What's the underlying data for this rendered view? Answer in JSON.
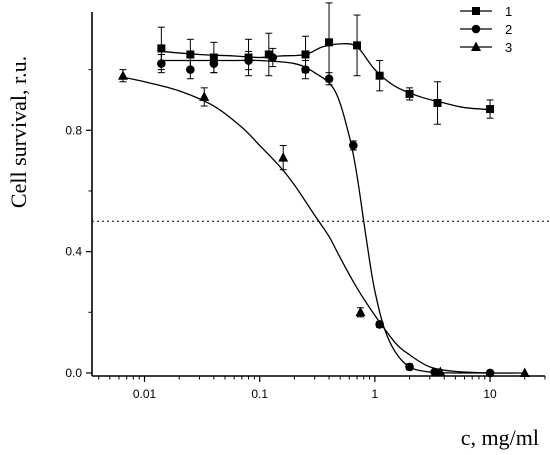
{
  "chart_data": {
    "type": "scatter",
    "title": "",
    "xlabel": "c, mg/ml",
    "ylabel": "Cell survival, r.u.",
    "xscale": "log",
    "xlim": [
      0.0035,
      30
    ],
    "ylim": [
      -0.01,
      1.19
    ],
    "x_ticks": [
      {
        "value": 0.01,
        "label": "0.01"
      },
      {
        "value": 0.1,
        "label": "0.1"
      },
      {
        "value": 1,
        "label": "1"
      },
      {
        "value": 10,
        "label": "10"
      }
    ],
    "y_ticks": [
      {
        "value": 0.0,
        "label": "0.0"
      },
      {
        "value": 0.4,
        "label": "0.4"
      },
      {
        "value": 0.8,
        "label": "0.8"
      }
    ],
    "reference_line": {
      "y": 0.5,
      "style": "dotted"
    },
    "legend_position": "top-right",
    "series": [
      {
        "name": "1",
        "marker": "square",
        "points": [
          {
            "x": 0.014,
            "y": 1.07,
            "err": 0.07
          },
          {
            "x": 0.025,
            "y": 1.05,
            "err": 0.05
          },
          {
            "x": 0.04,
            "y": 1.04,
            "err": 0.05
          },
          {
            "x": 0.08,
            "y": 1.04,
            "err": 0.06
          },
          {
            "x": 0.12,
            "y": 1.05,
            "err": 0.07
          },
          {
            "x": 0.25,
            "y": 1.05,
            "err": 0.06
          },
          {
            "x": 0.4,
            "y": 1.09,
            "err": 0.13
          },
          {
            "x": 0.7,
            "y": 1.08,
            "err": 0.1
          },
          {
            "x": 1.1,
            "y": 0.98,
            "err": 0.05
          },
          {
            "x": 2,
            "y": 0.92,
            "err": 0.02
          },
          {
            "x": 3.5,
            "y": 0.89,
            "err": 0.07
          },
          {
            "x": 10,
            "y": 0.87,
            "err": 0.03
          }
        ],
        "curve": [
          [
            0.014,
            1.06
          ],
          [
            0.03,
            1.05
          ],
          [
            0.06,
            1.045
          ],
          [
            0.1,
            1.04
          ],
          [
            0.15,
            1.045
          ],
          [
            0.25,
            1.05
          ],
          [
            0.35,
            1.075
          ],
          [
            0.5,
            1.085
          ],
          [
            0.7,
            1.075
          ],
          [
            1,
            1.0
          ],
          [
            1.5,
            0.945
          ],
          [
            2.5,
            0.91
          ],
          [
            4,
            0.89
          ],
          [
            6,
            0.875
          ],
          [
            10,
            0.868
          ]
        ]
      },
      {
        "name": "2",
        "marker": "circle",
        "points": [
          {
            "x": 0.014,
            "y": 1.02,
            "err": 0.03
          },
          {
            "x": 0.025,
            "y": 1.0,
            "err": 0.03
          },
          {
            "x": 0.04,
            "y": 1.02,
            "err": 0.03
          },
          {
            "x": 0.08,
            "y": 1.03,
            "err": 0.03
          },
          {
            "x": 0.13,
            "y": 1.04,
            "err": 0.03
          },
          {
            "x": 0.25,
            "y": 1.0,
            "err": 0.03
          },
          {
            "x": 0.4,
            "y": 0.97,
            "err": 0.02
          },
          {
            "x": 0.65,
            "y": 0.75,
            "err": 0.015
          },
          {
            "x": 1.1,
            "y": 0.16,
            "err": 0.01
          },
          {
            "x": 2,
            "y": 0.02,
            "err": 0.01
          },
          {
            "x": 3.3,
            "y": 0.003,
            "err": 0.005
          },
          {
            "x": 10,
            "y": 0.0,
            "err": 0.005
          }
        ],
        "curve": [
          [
            0.014,
            1.03
          ],
          [
            0.03,
            1.03
          ],
          [
            0.06,
            1.03
          ],
          [
            0.1,
            1.03
          ],
          [
            0.2,
            1.02
          ],
          [
            0.3,
            0.99
          ],
          [
            0.45,
            0.93
          ],
          [
            0.6,
            0.78
          ],
          [
            0.7,
            0.65
          ],
          [
            0.8,
            0.5
          ],
          [
            0.9,
            0.37
          ],
          [
            1.0,
            0.27
          ],
          [
            1.2,
            0.15
          ],
          [
            1.5,
            0.07
          ],
          [
            2,
            0.02
          ],
          [
            3,
            0.003
          ],
          [
            5,
            0.0
          ],
          [
            10,
            0.0
          ]
        ]
      },
      {
        "name": "3",
        "marker": "triangle",
        "points": [
          {
            "x": 0.0065,
            "y": 0.98,
            "err": 0.02
          },
          {
            "x": 0.033,
            "y": 0.91,
            "err": 0.03
          },
          {
            "x": 0.16,
            "y": 0.71,
            "err": 0.04
          },
          {
            "x": 0.75,
            "y": 0.2,
            "err": 0.015
          },
          {
            "x": 3.7,
            "y": 0.003,
            "err": 0.0
          },
          {
            "x": 20,
            "y": 0.0,
            "err": 0.0
          }
        ],
        "curve": [
          [
            0.0065,
            0.975
          ],
          [
            0.01,
            0.96
          ],
          [
            0.02,
            0.93
          ],
          [
            0.04,
            0.88
          ],
          [
            0.07,
            0.81
          ],
          [
            0.1,
            0.75
          ],
          [
            0.15,
            0.68
          ],
          [
            0.2,
            0.62
          ],
          [
            0.3,
            0.52
          ],
          [
            0.4,
            0.45
          ],
          [
            0.5,
            0.38
          ],
          [
            0.7,
            0.28
          ],
          [
            1,
            0.19
          ],
          [
            1.5,
            0.1
          ],
          [
            2,
            0.06
          ],
          [
            3,
            0.02
          ],
          [
            5,
            0.005
          ],
          [
            10,
            0.0
          ],
          [
            20,
            0.0
          ]
        ]
      }
    ]
  }
}
